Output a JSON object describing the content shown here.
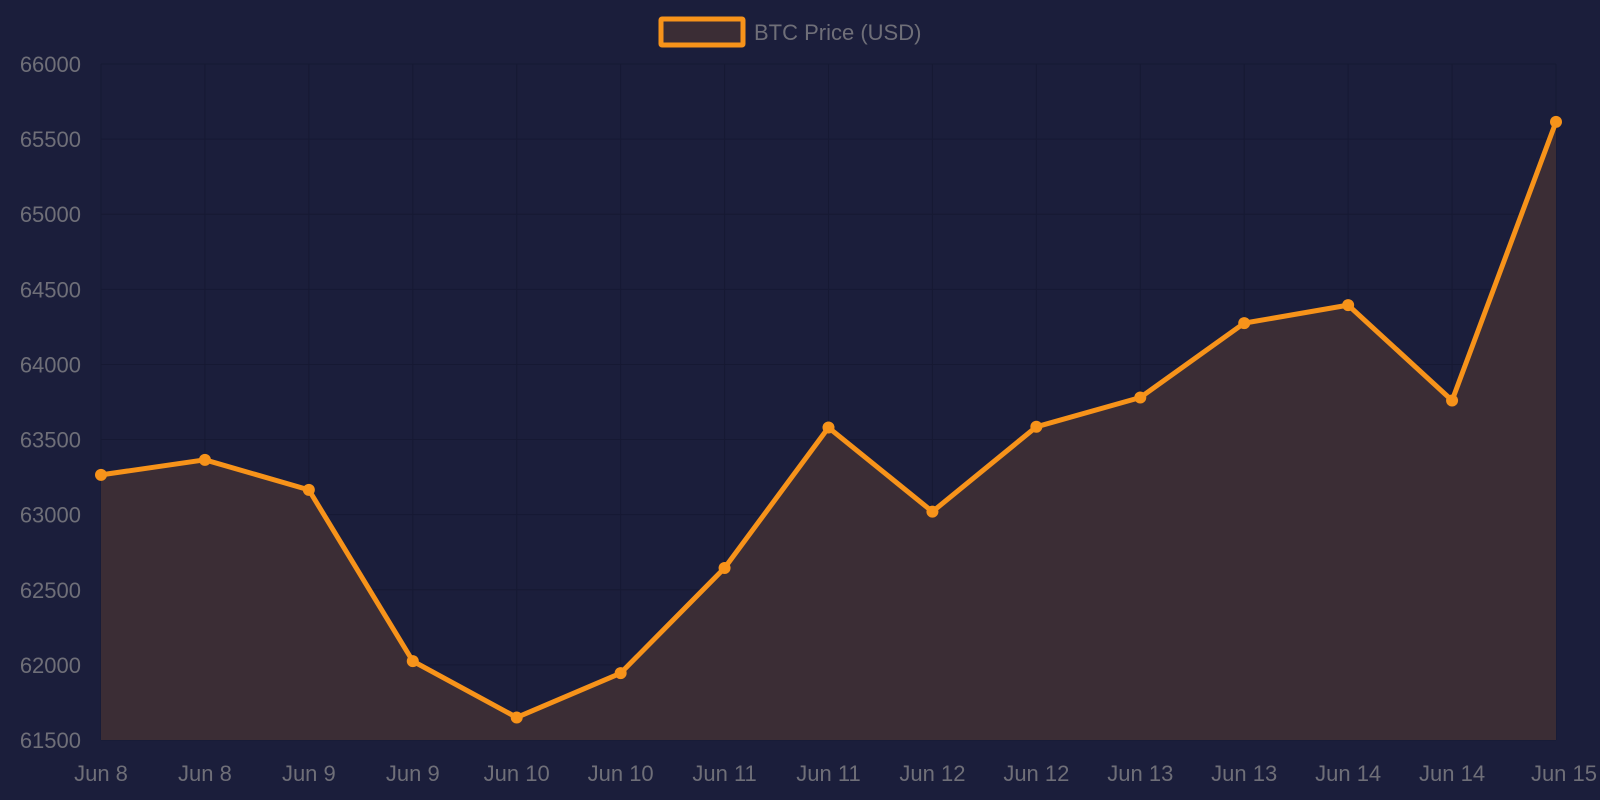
{
  "colors": {
    "background": "#1b1e3b",
    "line": "#f7931a",
    "fill": "#3b2d35",
    "grid": "#161933",
    "text": "#6f6f78"
  },
  "legend": {
    "label": "BTC Price (USD)",
    "position": "top-center"
  },
  "chart_data": {
    "type": "area",
    "grid": true,
    "ylim": [
      61500,
      66000
    ],
    "yticks": [
      61500,
      62000,
      62500,
      63000,
      63500,
      64000,
      64500,
      65000,
      65500,
      66000
    ],
    "categories": [
      "Jun 8",
      "Jun 8",
      "Jun 9",
      "Jun 9",
      "Jun 10",
      "Jun 10",
      "Jun 11",
      "Jun 11",
      "Jun 12",
      "Jun 12",
      "Jun 13",
      "Jun 13",
      "Jun 14",
      "Jun 14",
      "Jun 15"
    ],
    "series": [
      {
        "name": "BTC Price (USD)",
        "values": [
          63265,
          63365,
          63165,
          62025,
          61650,
          61945,
          62645,
          63580,
          63020,
          63585,
          63780,
          64275,
          64395,
          63760,
          65615
        ]
      }
    ]
  }
}
